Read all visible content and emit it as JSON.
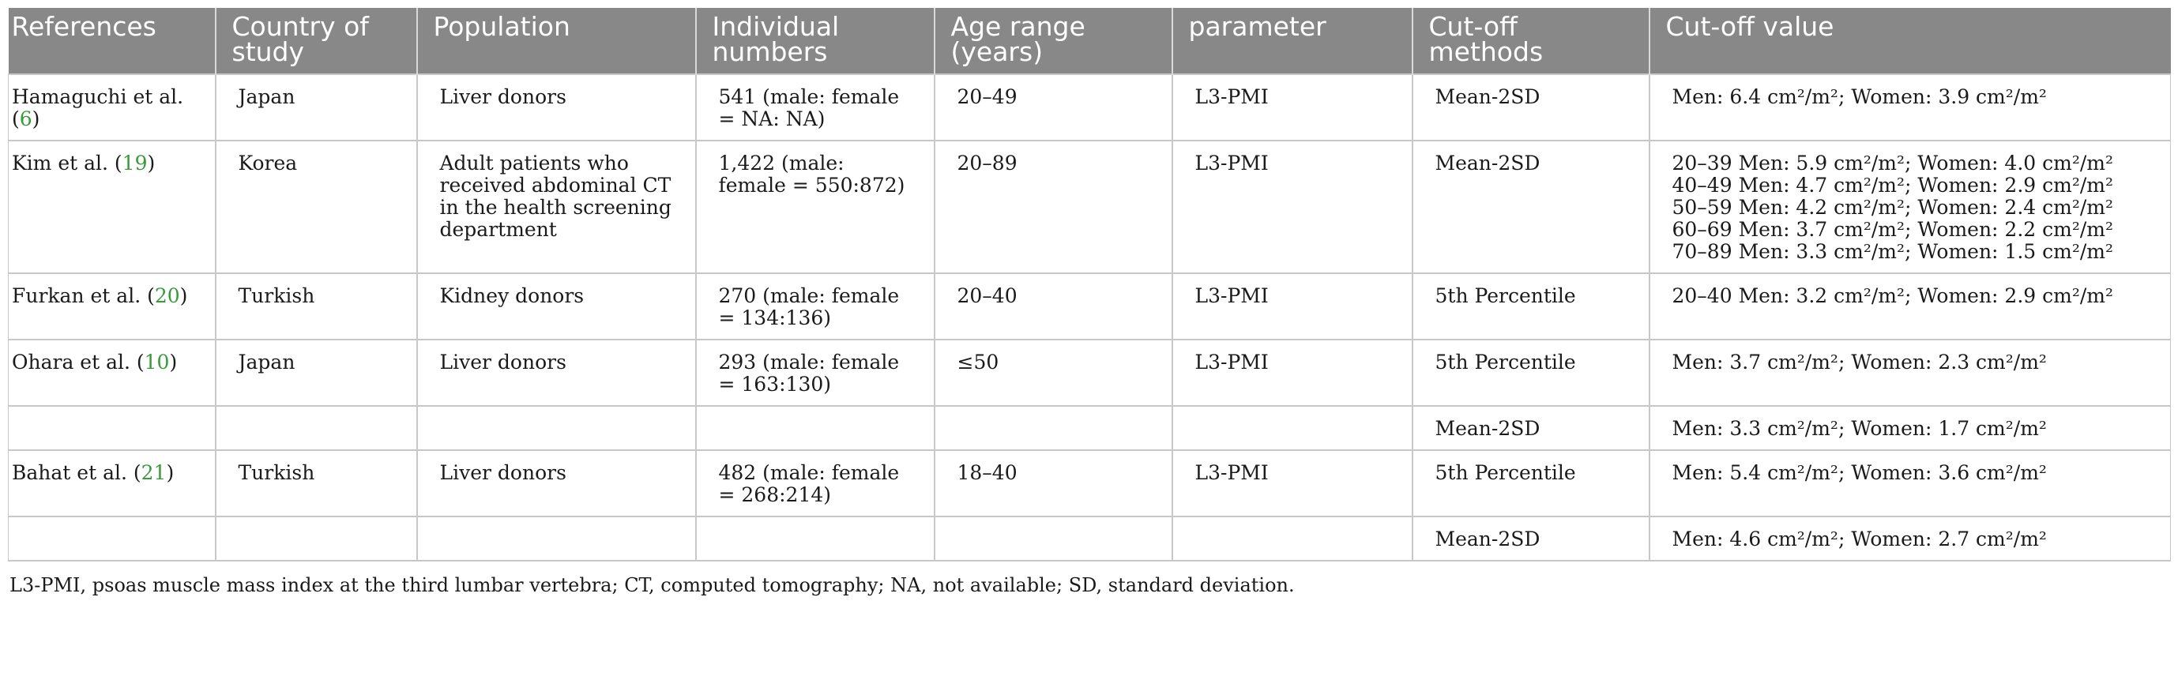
{
  "table": {
    "headers": [
      "References",
      "Country of study",
      "Population",
      "Individual numbers",
      "Age range (years)",
      "parameter",
      "Cut-off methods",
      "Cut-off value"
    ],
    "rows": [
      {
        "ref": "Hamaguchi et al. (",
        "ref_num": "6",
        "ref_end": ")",
        "country": "Japan",
        "population": "Liver donors",
        "numbers": "541 (male: female = NA: NA)",
        "age": "20–49",
        "parameter": "L3-PMI",
        "method": "Mean-2SD",
        "values": [
          "Men: 6.4 cm²/m²; Women: 3.9 cm²/m²"
        ]
      },
      {
        "ref": "Kim et al. (",
        "ref_num": "19",
        "ref_end": ")",
        "country": "Korea",
        "population": "Adult patients who received abdominal CT in the health screening department",
        "numbers": "1,422 (male: female = 550:872)",
        "age": "20–89",
        "parameter": "L3-PMI",
        "method": "Mean-2SD",
        "values": [
          "20–39 Men: 5.9 cm²/m²; Women: 4.0 cm²/m²",
          "40–49 Men: 4.7 cm²/m²; Women: 2.9 cm²/m²",
          "50–59 Men: 4.2 cm²/m²; Women: 2.4 cm²/m²",
          "60–69 Men: 3.7 cm²/m²; Women: 2.2 cm²/m²",
          "70–89 Men: 3.3 cm²/m²; Women: 1.5 cm²/m²"
        ]
      },
      {
        "ref": "Furkan et al. (",
        "ref_num": "20",
        "ref_end": ")",
        "country": "Turkish",
        "population": "Kidney donors",
        "numbers": "270 (male: female = 134:136)",
        "age": "20–40",
        "parameter": "L3-PMI",
        "method": "5th Percentile",
        "values": [
          "20–40 Men: 3.2 cm²/m²; Women: 2.9 cm²/m²"
        ]
      },
      {
        "ref": "Ohara et al. (",
        "ref_num": "10",
        "ref_end": ")",
        "country": "Japan",
        "population": "Liver donors",
        "numbers": "293 (male: female = 163:130)",
        "age": "≤50",
        "parameter": "L3-PMI",
        "method": "5th Percentile",
        "values": [
          "Men: 3.7 cm²/m²; Women: 2.3 cm²/m²"
        ]
      },
      {
        "ref": "",
        "ref_num": "",
        "ref_end": "",
        "country": "",
        "population": "",
        "numbers": "",
        "age": "",
        "parameter": "",
        "method": "Mean-2SD",
        "values": [
          "Men: 3.3 cm²/m²; Women: 1.7 cm²/m²"
        ]
      },
      {
        "ref": "Bahat et al. (",
        "ref_num": "21",
        "ref_end": ")",
        "country": "Turkish",
        "population": "Liver donors",
        "numbers": "482 (male: female = 268:214)",
        "age": "18–40",
        "parameter": "L3-PMI",
        "method": "5th Percentile",
        "values": [
          "Men: 5.4 cm²/m²; Women: 3.6 cm²/m²"
        ]
      },
      {
        "ref": "",
        "ref_num": "",
        "ref_end": "",
        "country": "",
        "population": "",
        "numbers": "",
        "age": "",
        "parameter": "",
        "method": "Mean-2SD",
        "values": [
          "Men: 4.6 cm²/m²; Women: 2.7 cm²/m²"
        ]
      }
    ]
  },
  "footnote": "L3-PMI, psoas muscle mass index at the third lumbar vertebra; CT, computed tomography; NA, not available; SD, standard deviation.",
  "colors": {
    "header_bg": "#888888",
    "header_text": "#ffffff",
    "citation": "#3a9a3a",
    "grid": "#c8c8c8"
  }
}
